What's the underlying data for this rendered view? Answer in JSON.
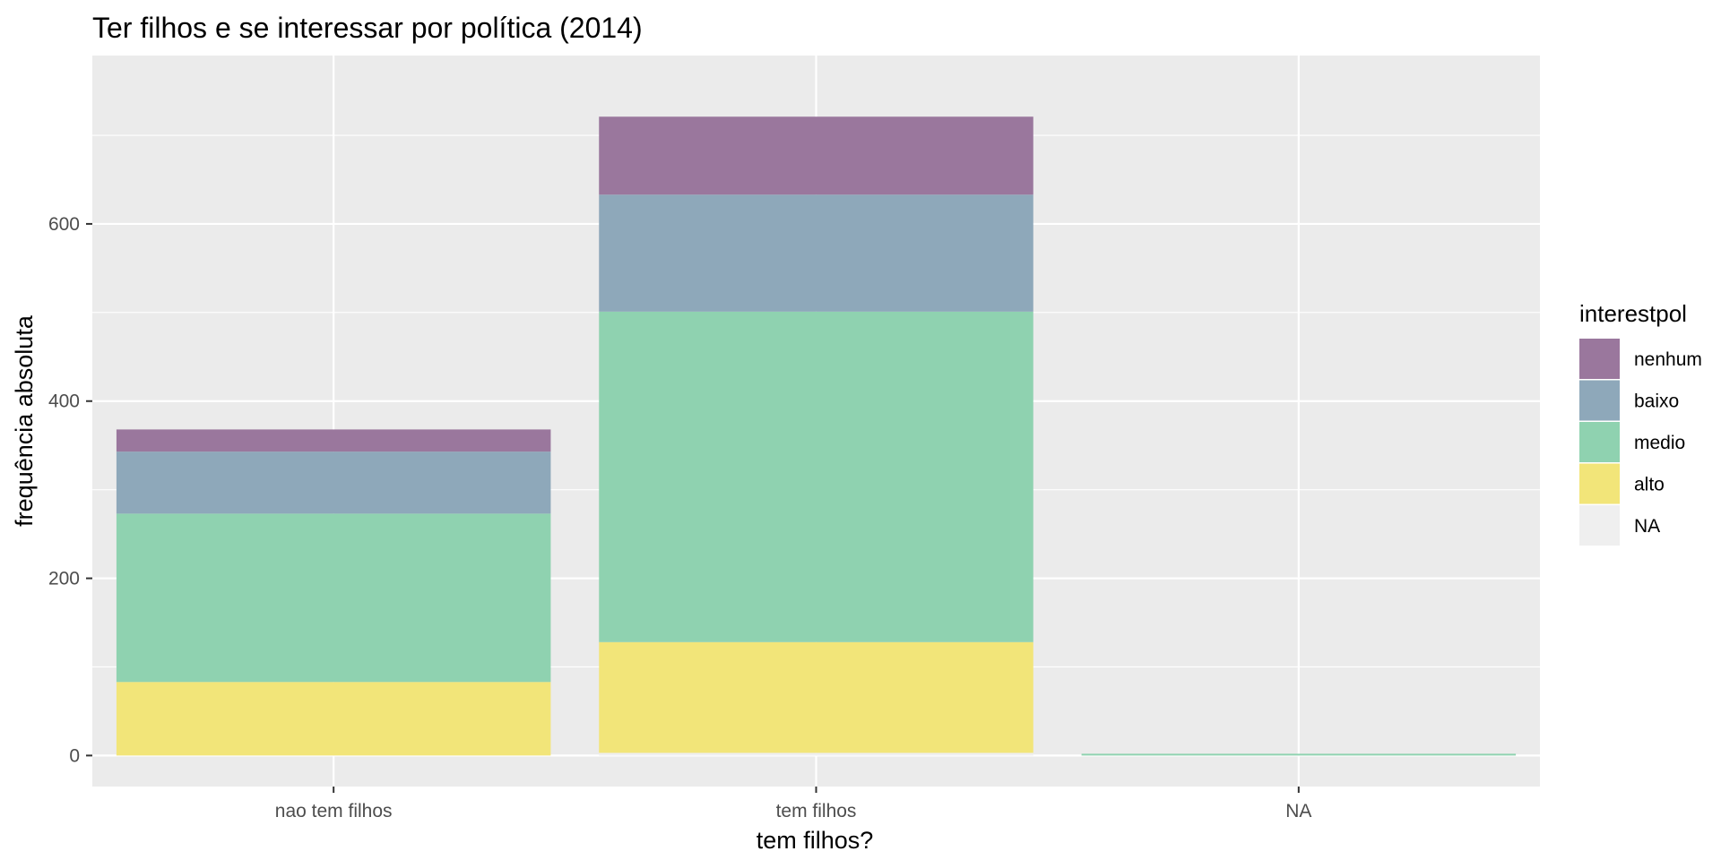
{
  "chart_data": {
    "type": "bar",
    "stacked": true,
    "title": "Ter filhos e se interessar por política (2014)",
    "xlabel": "tem filhos?",
    "ylabel": "frequência absoluta",
    "categories": [
      "nao tem filhos",
      "tem filhos",
      "NA"
    ],
    "yticks": [
      0,
      200,
      400,
      600
    ],
    "ylim": [
      -35,
      790
    ],
    "legend": {
      "title": "interestpol",
      "position": "right",
      "entries": [
        "nenhum",
        "baixo",
        "medio",
        "alto",
        "NA"
      ]
    },
    "series": [
      {
        "name": "NA",
        "color": "#efefef",
        "values": [
          0,
          3,
          0
        ]
      },
      {
        "name": "alto",
        "color": "#f2e579",
        "values": [
          83,
          125,
          0
        ]
      },
      {
        "name": "medio",
        "color": "#8fd2b0",
        "values": [
          190,
          373,
          2
        ]
      },
      {
        "name": "baixo",
        "color": "#8ea8ba",
        "values": [
          70,
          132,
          0
        ]
      },
      {
        "name": "nenhum",
        "color": "#9a779d",
        "values": [
          25,
          88,
          0
        ]
      }
    ],
    "grid": true,
    "panel_background": "#ebebeb"
  }
}
